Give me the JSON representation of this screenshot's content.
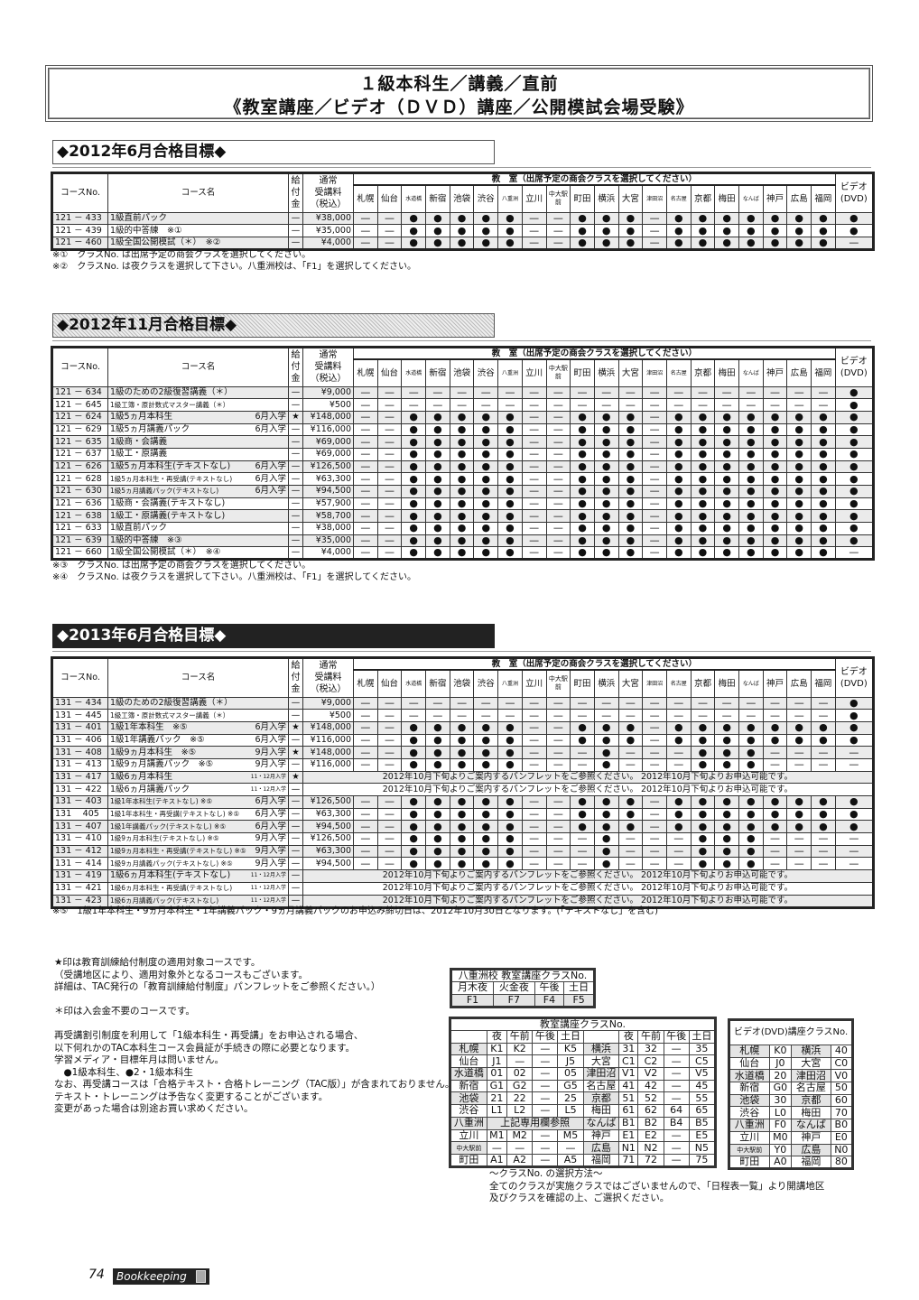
{
  "title": {
    "line1": "１級本科生／講義／直前",
    "line2": "《教室講座／ビデオ（ＤＶＤ）講座／公開模試会場受験》"
  },
  "header": {
    "course_no": "コースNo.",
    "course_name": "コース名",
    "kyufu": "給付金",
    "price": "通常受講料（税込）",
    "price_l1": "通常",
    "price_l2": "受講料",
    "price_l3": "（税込）",
    "classroom": "教　室（出席予定の商会クラスを選択してください）",
    "video": "ビデオ(DVD)",
    "video_l1": "ビデオ",
    "video_l2": "(DVD)",
    "locations": [
      "札幌",
      "仙台",
      "水道橋",
      "新宿",
      "池袋",
      "渋谷",
      "八重洲",
      "立川",
      "中大駅前",
      "町田",
      "横浜",
      "大宮",
      "津田沼",
      "名古屋",
      "京都",
      "梅田",
      "なんば",
      "神戸",
      "広島",
      "福岡"
    ],
    "small_locations": [
      "水道橋",
      "八重洲",
      "津田沼",
      "名古屋",
      "なんば"
    ]
  },
  "sections": [
    {
      "heading": "◆2012年6月合格目標◆",
      "rows": [
        {
          "no": "121 － 433",
          "name": "1級直前パック",
          "entry": "",
          "kyufu": "—",
          "price": "¥38,000",
          "marks": "——●●●●●——●●●—●●●●●●●●"
        },
        {
          "no": "121 － 439",
          "name": "1級的中答練　※①",
          "entry": "",
          "kyufu": "—",
          "price": "¥35,000",
          "marks": "——●●●●●——●●●—●●●●●●●●"
        },
        {
          "no": "121 － 460",
          "name": "1級全国公開模試（＊）　※②",
          "entry": "",
          "kyufu": "—",
          "price": "¥4,000",
          "marks": "——●●●●●——●●●—●●●●●●●—"
        }
      ],
      "notes": [
        "※①　クラスNo. は出席予定の商会クラスを選択してください。",
        "※②　クラスNo. は夜クラスを選択して下さい。八重洲校は、「F1」を選択してください。"
      ]
    },
    {
      "heading": "◆2012年11月合格目標◆",
      "rows": [
        {
          "no": "121 － 634",
          "name": "1級のための2級復習講義（＊）",
          "entry": "",
          "kyufu": "—",
          "price": "¥9,000",
          "marks": "————————————————————●"
        },
        {
          "no": "121 － 645",
          "name": "1級工簿・原計数式マスター講義（＊）",
          "small": true,
          "entry": "",
          "kyufu": "—",
          "price": "¥500",
          "marks": "————————————————————●"
        },
        {
          "no": "121 － 624",
          "name": "1級5ヵ月本科生",
          "entry": "6月入学",
          "kyufu": "★",
          "price": "¥148,000",
          "marks": "——●●●●●——●●●—●●●●●●●●"
        },
        {
          "no": "121 － 629",
          "name": "1級5ヵ月講義パック",
          "entry": "6月入学",
          "kyufu": "—",
          "price": "¥116,000",
          "marks": "——●●●●●——●●●—●●●●●●●●"
        },
        {
          "no": "121 － 635",
          "name": "1級商・会講義",
          "entry": "",
          "kyufu": "—",
          "price": "¥69,000",
          "marks": "——●●●●●——●●●—●●●●●●●●"
        },
        {
          "no": "121 － 637",
          "name": "1級工・原講義",
          "entry": "",
          "kyufu": "—",
          "price": "¥69,000",
          "marks": "——●●●●●——●●●—●●●●●●●●"
        },
        {
          "no": "121 － 626",
          "name": "1級5ヵ月本科生(テキストなし)",
          "entry": "6月入学",
          "kyufu": "—",
          "price": "¥126,500",
          "marks": "——●●●●●——●●●—●●●●●●●●"
        },
        {
          "no": "121 － 628",
          "name": "1級5ヵ月本科生・再受講(テキストなし)",
          "small": true,
          "entry": "6月入学",
          "kyufu": "—",
          "price": "¥63,300",
          "marks": "——●●●●●——●●●—●●●●●●●●"
        },
        {
          "no": "121 － 630",
          "name": "1級5ヵ月講義パック(テキストなし)",
          "small": true,
          "entry": "6月入学",
          "kyufu": "—",
          "price": "¥94,500",
          "marks": "——●●●●●——●●●—●●●●●●●●"
        },
        {
          "no": "121 － 636",
          "name": "1級商・会講義(テキストなし)",
          "entry": "",
          "kyufu": "—",
          "price": "¥57,900",
          "marks": "——●●●●●——●●●—●●●●●●●●"
        },
        {
          "no": "121 － 638",
          "name": "1級工・原講義(テキストなし)",
          "entry": "",
          "kyufu": "—",
          "price": "¥58,700",
          "marks": "——●●●●●——●●●—●●●●●●●●"
        },
        {
          "no": "121 － 633",
          "name": "1級直前パック",
          "entry": "",
          "kyufu": "—",
          "price": "¥38,000",
          "marks": "——●●●●●——●●●—●●●●●●●●"
        },
        {
          "no": "121 － 639",
          "name": "1級的中答練　※③",
          "entry": "",
          "kyufu": "—",
          "price": "¥35,000",
          "marks": "——●●●●●——●●●—●●●●●●●●"
        },
        {
          "no": "121 － 660",
          "name": "1級全国公開模試（＊）　※④",
          "entry": "",
          "kyufu": "—",
          "price": "¥4,000",
          "marks": "——●●●●●——●●●—●●●●●●●—"
        }
      ],
      "notes": [
        "※③　クラスNo. は出席予定の商会クラスを選択してください。",
        "※④　クラスNo. は夜クラスを選択して下さい。八重洲校は、「F1」を選択してください。"
      ]
    },
    {
      "heading": "◆2013年6月合格目標◆",
      "rows": [
        {
          "no": "131 － 434",
          "name": "1級のための2級復習講義（＊）",
          "entry": "",
          "kyufu": "—",
          "price": "¥9,000",
          "marks": "————————————————————●"
        },
        {
          "no": "131 － 445",
          "name": "1級工簿・原計数式マスター講義（＊）",
          "small": true,
          "entry": "",
          "kyufu": "—",
          "price": "¥500",
          "marks": "————————————————————●"
        },
        {
          "no": "131 － 401",
          "name": "1級1年本科生　※⑤",
          "entry": "6月入学",
          "kyufu": "★",
          "price": "¥148,000",
          "marks": "——●●●●●——●●●—●●●●●●●●"
        },
        {
          "no": "131 － 406",
          "name": "1級1年講義パック　※⑤",
          "entry": "6月入学",
          "kyufu": "—",
          "price": "¥116,000",
          "marks": "——●●●●●——●●●—●●●●●●●●"
        },
        {
          "no": "131 － 408",
          "name": "1級9ヵ月本科生　※⑤",
          "entry": "9月入学",
          "kyufu": "★",
          "price": "¥148,000",
          "marks": "——●●●●●———●———●●●————"
        },
        {
          "no": "131 － 413",
          "name": "1級9ヵ月講義パック　※⑤",
          "entry": "9月入学",
          "kyufu": "—",
          "price": "¥116,000",
          "marks": "——●●●●●———●———●●●————"
        },
        {
          "no": "131 － 417",
          "name": "1級6ヵ月本科生",
          "entry": "11・12月入学",
          "kyufu": "★",
          "notice": "2012年10月下旬よりご案内するパンフレットをご参照ください。 2012年10月下旬よりお申込可能です。"
        },
        {
          "no": "131 － 422",
          "name": "1級6ヵ月講義パック",
          "entry": "11・12月入学",
          "kyufu": "—",
          "notice": "2012年10月下旬よりご案内するパンフレットをご参照ください。 2012年10月下旬よりお申込可能です。"
        },
        {
          "no": "131 － 403",
          "name": "1級1年本科生(テキストなし) ※⑤",
          "small": true,
          "entry": "6月入学",
          "kyufu": "—",
          "price": "¥126,500",
          "marks": "——●●●●●——●●●—●●●●●●●●"
        },
        {
          "no": "131　 405",
          "name": "1級1年本科生・再受講(テキストなし) ※⑤",
          "small": true,
          "entry": "6月入学",
          "kyufu": "—",
          "price": "¥63,300",
          "marks": "——●●●●●——●●●—●●●●●●●●"
        },
        {
          "no": "131 － 407",
          "name": "1級1年講義パック(テキストなし) ※⑤",
          "small": true,
          "entry": "6月入学",
          "kyufu": "—",
          "price": "¥94,500",
          "marks": "——●●●●●——●●●—●●●●●●●●"
        },
        {
          "no": "131 － 410",
          "name": "1級9ヵ月本科生(テキストなし) ※⑤",
          "small": true,
          "entry": "9月入学",
          "kyufu": "—",
          "price": "¥126,500",
          "marks": "——●●●●●———●———●●●————"
        },
        {
          "no": "131 － 412",
          "name": "1級9ヵ月本科生・再受講(テキストなし) ※⑤",
          "small": true,
          "entry": "9月入学",
          "kyufu": "—",
          "price": "¥63,300",
          "marks": "——●●●●●———●———●●●————"
        },
        {
          "no": "131 － 414",
          "name": "1級9ヵ月講義パック(テキストなし) ※⑤",
          "small": true,
          "entry": "9月入学",
          "kyufu": "—",
          "price": "¥94,500",
          "marks": "——●●●●●———●———●●●————"
        },
        {
          "no": "131 － 419",
          "name": "1級6ヵ月本科生(テキストなし)",
          "entry": "11・12月入学",
          "kyufu": "—",
          "notice": "2012年10月下旬よりご案内するパンフレットをご参照ください。 2012年10月下旬よりお申込可能です。"
        },
        {
          "no": "131 － 421",
          "name": "1級6ヵ月本科生・再受講(テキストなし)",
          "small": true,
          "entry": "11・12月入学",
          "kyufu": "—",
          "notice": "2012年10月下旬よりご案内するパンフレットをご参照ください。 2012年10月下旬よりお申込可能です。"
        },
        {
          "no": "131 － 423",
          "name": "1級6ヵ月講義パック(テキストなし)",
          "small": true,
          "entry": "11・12月入学",
          "kyufu": "—",
          "notice": "2012年10月下旬よりご案内するパンフレットをご参照ください。 2012年10月下旬よりお申込可能です。"
        }
      ],
      "notes": [
        "※⑤　1級1年本科生・9ヵ月本科生・1年講義パック・9ヵ月講義パックのお申込み締切日は、2012年10月30日となります。(「テキストなし」を含む)"
      ]
    }
  ],
  "info": {
    "lines": [
      "★印は教育訓練給付制度の適用対象コースです。",
      "（受講地区により、適用対象外となるコースもございます。",
      "詳細は、TAC発行の「教育訓練給付制度」パンフレットをご参照ください。）",
      "",
      "＊印は入会金不要のコースです。",
      "",
      "再受講割引制度を利用して「1級本科生・再受講」をお申込される場合、",
      "以下何れかのTAC本科生コース会員証が手続きの際に必要となります。",
      "学習メディア・目標年月は問いません。",
      "　●1級本科生、●2・1級本科生",
      "なお、再受講コースは「合格テキスト・合格トレーニング（TAC版）」が含まれておりません。",
      "テキスト・トレーニングは予告なく変更することがございます。",
      "変更があった場合は別途お買い求めください。"
    ]
  },
  "yaesu": {
    "title": "八重洲校 教室講座クラスNo.",
    "headers": [
      "月木夜",
      "火金夜",
      "午後",
      "土日"
    ],
    "values": [
      "F1",
      "F7",
      "F4",
      "F5"
    ]
  },
  "classroom_table": {
    "title": "教室講座クラスNo.",
    "headers": [
      "夜",
      "午前",
      "午後",
      "土日"
    ],
    "left": [
      [
        "札幌",
        "K1",
        "K2",
        "—",
        "K5"
      ],
      [
        "仙台",
        "J1",
        "—",
        "—",
        "J5"
      ],
      [
        "水道橋",
        "01",
        "02",
        "—",
        "05"
      ],
      [
        "新宿",
        "G1",
        "G2",
        "—",
        "G5"
      ],
      [
        "池袋",
        "21",
        "22",
        "—",
        "25"
      ],
      [
        "渋谷",
        "L1",
        "L2",
        "—",
        "L5"
      ],
      [
        "八重洲",
        "上記専用欄参照"
      ],
      [
        "立川",
        "M1",
        "M2",
        "—",
        "M5"
      ],
      [
        "中大駅前",
        "—",
        "—",
        "—",
        "—"
      ],
      [
        "町田",
        "A1",
        "A2",
        "—",
        "A5"
      ]
    ],
    "right": [
      [
        "横浜",
        "31",
        "32",
        "—",
        "35"
      ],
      [
        "大宮",
        "C1",
        "C2",
        "—",
        "C5"
      ],
      [
        "津田沼",
        "V1",
        "V2",
        "—",
        "V5"
      ],
      [
        "名古屋",
        "41",
        "42",
        "—",
        "45"
      ],
      [
        "京都",
        "51",
        "52",
        "—",
        "55"
      ],
      [
        "梅田",
        "61",
        "62",
        "64",
        "65"
      ],
      [
        "なんば",
        "B1",
        "B2",
        "B4",
        "B5"
      ],
      [
        "神戸",
        "E1",
        "E2",
        "—",
        "E5"
      ],
      [
        "広島",
        "N1",
        "N2",
        "—",
        "N5"
      ],
      [
        "福岡",
        "71",
        "72",
        "—",
        "75"
      ]
    ]
  },
  "video_table": {
    "title": "ビデオ(DVD)講座クラスNo.",
    "rows": [
      [
        "札幌",
        "K0",
        "横浜",
        "40"
      ],
      [
        "仙台",
        "J0",
        "大宮",
        "C0"
      ],
      [
        "水道橋",
        "20",
        "津田沼",
        "V0"
      ],
      [
        "新宿",
        "G0",
        "名古屋",
        "50"
      ],
      [
        "池袋",
        "30",
        "京都",
        "60"
      ],
      [
        "渋谷",
        "L0",
        "梅田",
        "70"
      ],
      [
        "八重洲",
        "F0",
        "なんば",
        "B0"
      ],
      [
        "立川",
        "M0",
        "神戸",
        "E0"
      ],
      [
        "中大駅前",
        "Y0",
        "広島",
        "N0"
      ],
      [
        "町田",
        "A0",
        "福岡",
        "80"
      ]
    ]
  },
  "selection": {
    "title": "～クラスNo. の選択方法～",
    "line1": "全てのクラスが実施クラスではございませんので、「日程表一覧」より開講地区",
    "line2": "及びクラスを確認の上、ご選択ください。"
  },
  "footer": {
    "page": "74",
    "brand": "Bookkeeping",
    "brand_icon": "calculator-icon"
  }
}
